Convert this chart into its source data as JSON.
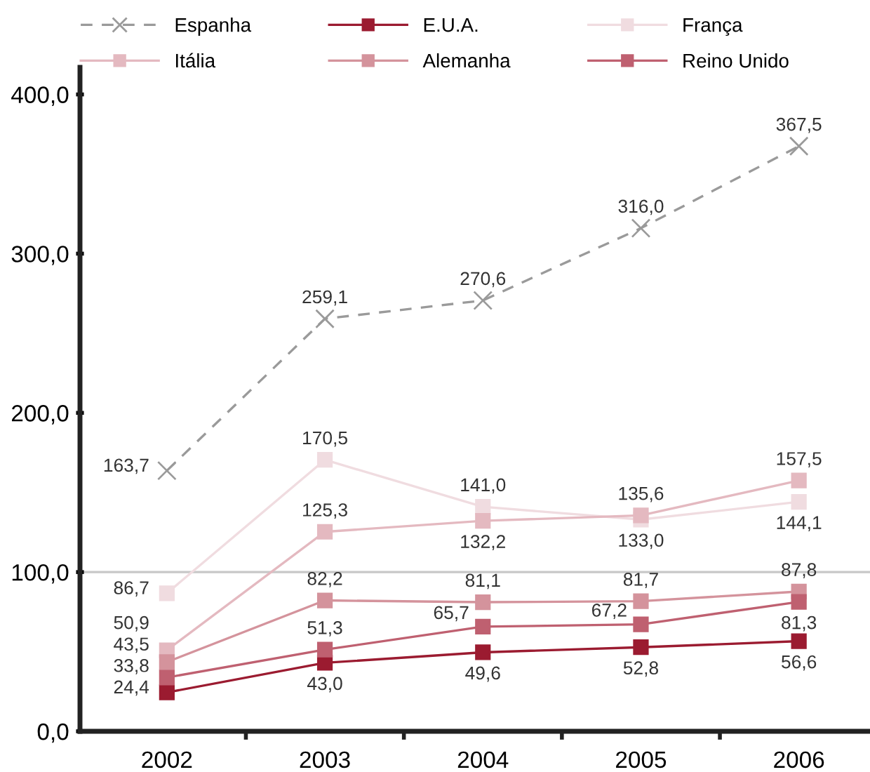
{
  "chart_data": {
    "type": "line",
    "categories": [
      "2002",
      "2003",
      "2004",
      "2005",
      "2006"
    ],
    "series": [
      {
        "name": "Espanha",
        "color": "#9a9a9a",
        "line_style": "dashed",
        "marker": "cross",
        "values": [
          163.7,
          259.1,
          270.6,
          316.0,
          367.5
        ],
        "value_labels": [
          "163,7",
          "259,1",
          "270,6",
          "316,0",
          "367,5"
        ]
      },
      {
        "name": "E.U.A.",
        "color": "#9b1b30",
        "line_style": "solid",
        "marker": "square",
        "values": [
          24.4,
          43.0,
          49.6,
          52.8,
          56.6
        ],
        "value_labels": [
          "24,4",
          "43,0",
          "49,6",
          "52,8",
          "56,6"
        ]
      },
      {
        "name": "França",
        "color": "#f0dce0",
        "line_style": "solid",
        "marker": "square",
        "values": [
          86.7,
          170.5,
          141.0,
          133.0,
          144.1
        ],
        "value_labels": [
          "86,7",
          "170,5",
          "141,0",
          "133,0",
          "144,1"
        ]
      },
      {
        "name": "Itália",
        "color": "#e4b9c0",
        "line_style": "solid",
        "marker": "square",
        "values": [
          50.9,
          125.3,
          132.2,
          135.6,
          157.5
        ],
        "value_labels": [
          "50,9",
          "125,3",
          "132,2",
          "135,6",
          "157,5"
        ]
      },
      {
        "name": "Alemanha",
        "color": "#d4939c",
        "line_style": "solid",
        "marker": "square",
        "values": [
          43.5,
          82.2,
          81.1,
          81.7,
          87.8
        ],
        "value_labels": [
          "43,5",
          "82,2",
          "81,1",
          "81,7",
          "87,8"
        ]
      },
      {
        "name": "Reino Unido",
        "color": "#bf6070",
        "line_style": "solid",
        "marker": "square",
        "values": [
          33.8,
          51.3,
          65.7,
          67.2,
          81.3
        ],
        "value_labels": [
          "33,8",
          "51,3",
          "65,7",
          "67,2",
          "81,3"
        ]
      }
    ],
    "ylim": [
      0,
      417
    ],
    "yticks": [
      {
        "value": 0,
        "label": "0,0"
      },
      {
        "value": 100,
        "label": "100,0"
      },
      {
        "value": 200,
        "label": "200,0"
      },
      {
        "value": 300,
        "label": "300,0"
      },
      {
        "value": 400,
        "label": "400,0"
      }
    ],
    "ref_lines": [
      {
        "axis": "y",
        "value": 100,
        "label": null,
        "color": "#c8c8c8"
      }
    ],
    "grid": false,
    "legend": "top"
  }
}
